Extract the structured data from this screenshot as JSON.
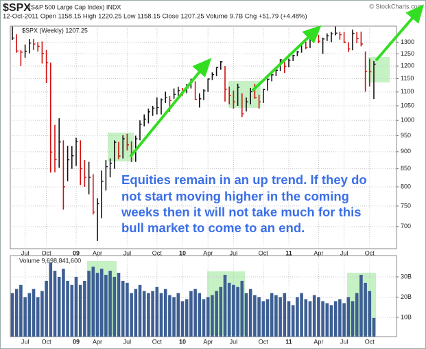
{
  "chart_data": [
    {
      "type": "hlc",
      "title": "$SPX",
      "subtitle": "(S&P 500 Large Cap Index) INDX",
      "source": "© StockCharts.com",
      "quote": "12-Oct-2011   Open 1158.15   High 1220.25   Low 1158.15   Close 1207.25   Volume 9.7B   Chg +51.79 (+4.48%)",
      "legend": "$SPX (Weekly) 1207.25",
      "annotation": [
        "Equities remain in an up trend. If they do",
        "not start moving higher in the coming",
        "weeks then it will not take much for this",
        "bull market to come to an end."
      ],
      "categories": [
        null,
        null,
        null,
        "Jul",
        null,
        null,
        null,
        null,
        "Oct",
        null,
        null,
        null,
        null,
        null,
        null,
        "09",
        null,
        null,
        null,
        null,
        "Apr",
        null,
        null,
        null,
        null,
        null,
        null,
        "Jul",
        null,
        null,
        null,
        null,
        null,
        null,
        "Oct",
        null,
        null,
        null,
        null,
        null,
        "10",
        null,
        null,
        null,
        null,
        null,
        "Apr",
        null,
        null,
        null,
        null,
        null,
        "Jul",
        null,
        null,
        null,
        null,
        null,
        null,
        "Oct",
        null,
        null,
        null,
        null,
        null,
        "11",
        null,
        null,
        null,
        null,
        null,
        null,
        "Apr",
        null,
        null,
        null,
        null,
        null,
        "Jul",
        null,
        null,
        null,
        null,
        null,
        "Oct",
        null
      ],
      "high": [
        1370,
        1335,
        1265,
        1290,
        1313,
        1313,
        1300,
        1303,
        1266,
        1214,
        985,
        1007,
        935,
        918,
        917,
        943,
        935,
        875,
        870,
        835,
        770,
        845,
        875,
        880,
        935,
        930,
        951,
        956,
        932,
        950,
        1000,
        1020,
        1040,
        1050,
        1080,
        1076,
        1101,
        1085,
        1113,
        1119,
        1115,
        1130,
        1150,
        1140,
        1095,
        1110,
        1150,
        1175,
        1195,
        1220,
        1200,
        1120,
        1105,
        1131,
        1095,
        1080,
        1115,
        1130,
        1090,
        1110,
        1150,
        1170,
        1190,
        1228,
        1228,
        1230,
        1246,
        1262,
        1296,
        1302,
        1335,
        1345,
        1332,
        1320,
        1339,
        1345,
        1370,
        1346,
        1345,
        1300,
        1356,
        1345,
        1347,
        1260,
        1230,
        1220.25
      ],
      "low": [
        1310,
        1255,
        1200,
        1234,
        1252,
        1266,
        1260,
        1210,
        1133,
        839,
        840,
        853,
        741,
        815,
        850,
        858,
        805,
        800,
        780,
        729,
        667,
        720,
        790,
        826,
        850,
        878,
        880,
        904,
        869,
        870,
        935,
        980,
        990,
        1015,
        1020,
        1020,
        1060,
        1029,
        1075,
        1085,
        1086,
        1095,
        1113,
        1071,
        1044,
        1070,
        1100,
        1145,
        1160,
        1185,
        1065,
        1055,
        1040,
        1050,
        1011,
        1030,
        1055,
        1075,
        1040,
        1060,
        1105,
        1140,
        1160,
        1180,
        1173,
        1195,
        1220,
        1240,
        1255,
        1270,
        1275,
        1315,
        1295,
        1250,
        1305,
        1300,
        1330,
        1311,
        1295,
        1258,
        1265,
        1295,
        1282,
        1101,
        1120,
        1074
      ],
      "close": [
        1318,
        1262,
        1257,
        1261,
        1296,
        1292,
        1282,
        1251,
        1213,
        899,
        877,
        930,
        800,
        876,
        888,
        931,
        850,
        826,
        826,
        735,
        756,
        815,
        856,
        866,
        929,
        887,
        940,
        921,
        896,
        940,
        987,
        1004,
        1029,
        1042,
        1044,
        1071,
        1079,
        1069,
        1091,
        1105,
        1102,
        1115,
        1136,
        1073,
        1075,
        1104,
        1149,
        1166,
        1194,
        1217,
        1110,
        1087,
        1064,
        1117,
        1022,
        1064,
        1101,
        1079,
        1064,
        1109,
        1148,
        1165,
        1183,
        1225,
        1199,
        1224,
        1243,
        1258,
        1293,
        1276,
        1329,
        1343,
        1304,
        1314,
        1328,
        1337,
        1340,
        1333,
        1300,
        1271,
        1339,
        1316,
        1292,
        1178,
        1177,
        1207.25
      ],
      "up_color": "#111111",
      "down_color": "#d01010",
      "log_scale": true,
      "grid": true,
      "ylim": [
        650,
        1372
      ],
      "yticks": [
        700,
        750,
        800,
        850,
        900,
        950,
        1000,
        1050,
        1100,
        1150,
        1200,
        1250,
        1300
      ]
    },
    {
      "type": "bar",
      "legend": "Volume 9,698,841,600",
      "categories": [
        null,
        null,
        null,
        "Jul",
        null,
        null,
        null,
        null,
        "Oct",
        null,
        null,
        null,
        null,
        null,
        null,
        "09",
        null,
        null,
        null,
        null,
        "Apr",
        null,
        null,
        null,
        null,
        null,
        null,
        "Jul",
        null,
        null,
        null,
        null,
        null,
        null,
        "Oct",
        null,
        null,
        null,
        null,
        null,
        "10",
        null,
        null,
        null,
        null,
        null,
        "Apr",
        null,
        null,
        null,
        null,
        null,
        "Jul",
        null,
        null,
        null,
        null,
        null,
        null,
        "Oct",
        null,
        null,
        null,
        null,
        null,
        "11",
        null,
        null,
        null,
        null,
        null,
        null,
        "Apr",
        null,
        null,
        null,
        null,
        null,
        "Jul",
        null,
        null,
        null,
        null,
        null,
        "Oct",
        null
      ],
      "values": [
        22,
        24,
        26,
        20,
        22,
        24,
        20,
        23,
        28,
        37,
        33,
        30,
        34,
        28,
        26,
        30,
        26,
        28,
        33,
        35,
        32,
        34,
        31,
        33,
        30,
        32,
        28,
        27,
        22,
        24,
        26,
        23,
        22,
        23,
        25,
        22,
        24,
        21,
        20,
        22,
        18,
        19,
        23,
        24,
        22,
        19,
        20,
        21,
        23,
        25,
        31,
        27,
        26,
        25,
        28,
        22,
        24,
        21,
        20,
        18,
        19,
        22,
        21,
        20,
        22,
        18,
        16,
        20,
        22,
        19,
        18,
        21,
        20,
        18,
        17,
        16,
        18,
        19,
        17,
        20,
        18,
        22,
        31,
        27,
        23,
        9.6988416
      ],
      "color": "#3d5f93",
      "grid": true,
      "ylim": [
        0.5,
        40.5
      ],
      "yticks": [
        {
          "value": 10,
          "label": "10B"
        },
        {
          "value": 20,
          "label": "20B"
        },
        {
          "value": 30,
          "label": "30B"
        }
      ]
    }
  ]
}
